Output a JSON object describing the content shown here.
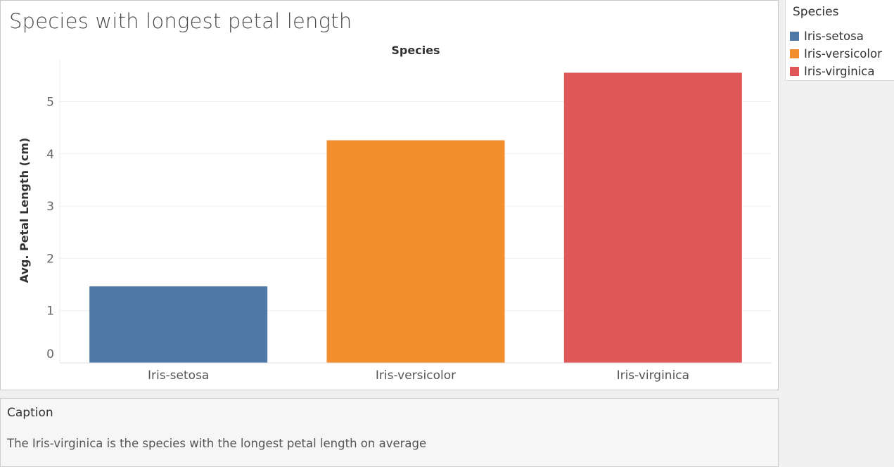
{
  "legend": {
    "title": "Species",
    "items": [
      {
        "label": "Iris-setosa",
        "color": "#4e79a7"
      },
      {
        "label": "Iris-versicolor",
        "color": "#f28e2b"
      },
      {
        "label": "Iris-virginica",
        "color": "#e15759"
      }
    ]
  },
  "caption": {
    "title": "Caption",
    "text": "The Iris-virginica is the species with the longest petal length on average"
  },
  "chart_data": {
    "type": "bar",
    "title": "Species with longest petal length",
    "header": "Species",
    "ylabel": "Avg. Petal Length (cm)",
    "xlabel": "",
    "categories": [
      "Iris-setosa",
      "Iris-versicolor",
      "Iris-virginica"
    ],
    "values": [
      1.464,
      4.26,
      5.552
    ],
    "colors": [
      "#4e79a7",
      "#f28e2b",
      "#e15759"
    ],
    "yticks": [
      0,
      1,
      2,
      3,
      4,
      5
    ],
    "ylim": [
      0,
      5.8
    ],
    "grid": true,
    "legend_position": "top-right"
  }
}
